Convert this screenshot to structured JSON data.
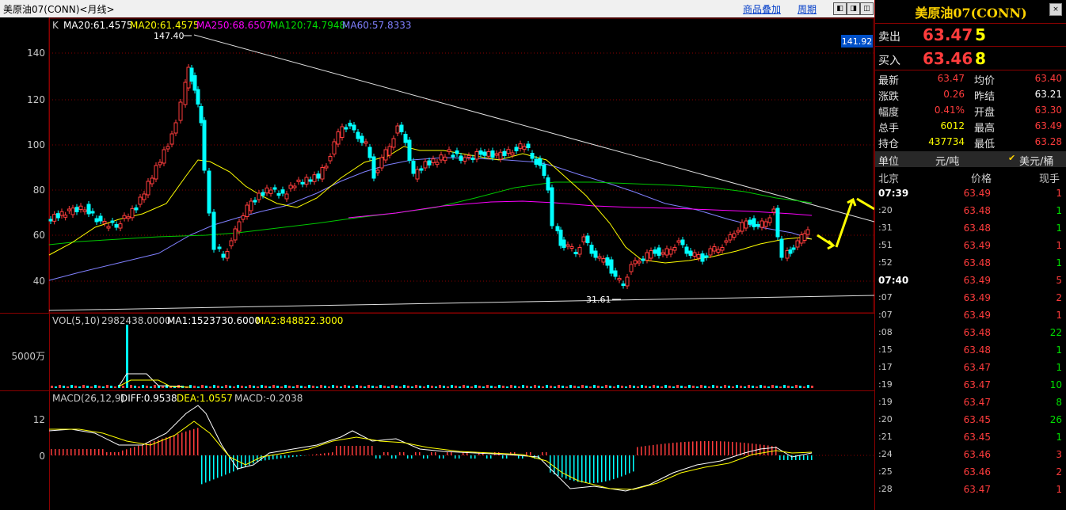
{
  "title_bar": {
    "title": "美原油07(CONN)<月线>",
    "overlay_link": "商品叠加",
    "period_link": "周期",
    "nav_buttons": [
      "◧",
      "◨",
      "◫"
    ]
  },
  "main_chart": {
    "legend": {
      "k": "K",
      "ma20a": "MA20:61.4575",
      "ma20b": "MA20:61.4575",
      "ma250": "MA250:68.6507",
      "ma120": "MA120:74.7948",
      "ma60": "MA60:57.8333"
    },
    "y_ticks": [
      "140",
      "120",
      "100",
      "80",
      "60",
      "40"
    ],
    "high_label": "147.40",
    "low_label": "31.61",
    "price_tag": "141.92"
  },
  "volume_chart": {
    "legend": {
      "name": "VOL(5,10)",
      "vol": "2982438.0000",
      "ma1": "MA1:1523730.6000",
      "ma2": "MA2:848822.3000"
    },
    "y_label": "5000万"
  },
  "macd_chart": {
    "legend": {
      "name": "MACD(26,12,9)",
      "diff": "DIFF:0.9538",
      "dea": "DEA:1.0557",
      "macd": "MACD:-0.2038"
    },
    "y_ticks": [
      "12",
      "0"
    ]
  },
  "quote_panel": {
    "title": "美原油07(CONN)",
    "close_button": "×",
    "sell": {
      "label": "卖出",
      "price": "63.47",
      "volume": "5"
    },
    "buy": {
      "label": "买入",
      "price": "63.46",
      "volume": "8"
    },
    "rows": [
      {
        "l1": "最新",
        "v1": "63.47",
        "l2": "均价",
        "v2": "63.40"
      },
      {
        "l1": "涨跌",
        "v1": "0.26",
        "l2": "昨结",
        "v2": "63.21"
      },
      {
        "l1": "幅度",
        "v1": "0.41%",
        "l2": "开盘",
        "v2": "63.30"
      },
      {
        "l1": "总手",
        "v1": "6012",
        "l2": "最高",
        "v2": "63.49"
      },
      {
        "l1": "持仓",
        "v1": "437734",
        "l2": "最低",
        "v2": "63.28"
      }
    ],
    "unit_bar": {
      "label": "单位",
      "value1": "元/吨",
      "check": "✔",
      "value2": "美元/桶"
    },
    "ticks_header": {
      "col1": "北京",
      "col2": "价格",
      "col3": "现手"
    },
    "ticks": [
      {
        "time": "07:39",
        "price": "63.49",
        "vol": "1",
        "vcolor": "red"
      },
      {
        "time": ":20",
        "price": "63.48",
        "vol": "1",
        "vcolor": "green"
      },
      {
        "time": ":31",
        "price": "63.48",
        "vol": "1",
        "vcolor": "green"
      },
      {
        "time": ":51",
        "price": "63.49",
        "vol": "1",
        "vcolor": "red"
      },
      {
        "time": ":52",
        "price": "63.48",
        "vol": "1",
        "vcolor": "green"
      },
      {
        "time": "07:40",
        "price": "63.49",
        "vol": "5",
        "vcolor": "red"
      },
      {
        "time": ":07",
        "price": "63.49",
        "vol": "2",
        "vcolor": "red"
      },
      {
        "time": ":07",
        "price": "63.49",
        "vol": "1",
        "vcolor": "red"
      },
      {
        "time": ":08",
        "price": "63.48",
        "vol": "22",
        "vcolor": "green"
      },
      {
        "time": ":15",
        "price": "63.48",
        "vol": "1",
        "vcolor": "green"
      },
      {
        "time": ":17",
        "price": "63.47",
        "vol": "1",
        "vcolor": "green"
      },
      {
        "time": ":19",
        "price": "63.47",
        "vol": "10",
        "vcolor": "green"
      },
      {
        "time": ":19",
        "price": "63.47",
        "vol": "8",
        "vcolor": "green"
      },
      {
        "time": ":20",
        "price": "63.45",
        "vol": "26",
        "vcolor": "green"
      },
      {
        "time": ":21",
        "price": "63.45",
        "vol": "1",
        "vcolor": "green"
      },
      {
        "time": ":24",
        "price": "63.46",
        "vol": "3",
        "vcolor": "red"
      },
      {
        "time": ":25",
        "price": "63.46",
        "vol": "2",
        "vcolor": "red"
      },
      {
        "time": ":28",
        "price": "63.47",
        "vol": "1",
        "vcolor": "red"
      }
    ]
  },
  "colors": {
    "up": "#ff3c3c",
    "down": "#00ffff",
    "ma20": "#ffff00",
    "ma60": "#8080ff",
    "ma120": "#00c800",
    "ma250": "#ff00ff",
    "annotation": "#ffff00"
  },
  "chart_data": {
    "type": "candlestick",
    "series": [
      {
        "name": "MA20",
        "values": [
          61.4575
        ]
      },
      {
        "name": "MA60",
        "values": [
          57.8333
        ]
      },
      {
        "name": "MA120",
        "values": [
          74.7948
        ]
      },
      {
        "name": "MA250",
        "values": [
          68.6507
        ]
      }
    ],
    "ylim": [
      30,
      150
    ],
    "grid": true
  }
}
